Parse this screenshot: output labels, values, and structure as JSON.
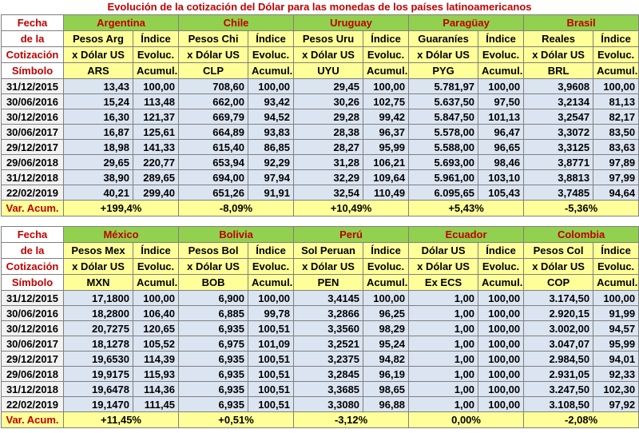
{
  "title": "Evolución de la cotización del Dólar para las monedas de los países latinoamericanos",
  "labels": {
    "fecha": "Fecha",
    "de_la": "de la",
    "cotizacion": "Cotización",
    "simbolo": "Símbolo",
    "var_acum": "Var. Acum."
  },
  "dates": [
    "31/12/2015",
    "30/06/2016",
    "30/12/2016",
    "30/06/2017",
    "29/12/2017",
    "29/06/2018",
    "31/12/2018",
    "22/02/2019"
  ],
  "tables": [
    {
      "countries": [
        {
          "name": "Argentina",
          "unit1": "Pesos Arg",
          "unit2": "x Dólar US",
          "symbol": "ARS",
          "idx1": "Índice",
          "idx2": "Evoluc.",
          "idx3": "Acumul.",
          "values": [
            "13,43",
            "15,24",
            "16,30",
            "16,87",
            "18,98",
            "29,65",
            "38,90",
            "40,21"
          ],
          "index": [
            "100,00",
            "113,48",
            "121,37",
            "125,61",
            "141,33",
            "220,77",
            "289,65",
            "299,40"
          ],
          "var": "+199,4%"
        },
        {
          "name": "Chile",
          "unit1": "Pesos Chi",
          "unit2": "x Dólar US",
          "symbol": "CLP",
          "idx1": "Índice",
          "idx2": "Evoluc.",
          "idx3": "Acumul.",
          "values": [
            "708,60",
            "662,00",
            "669,79",
            "664,89",
            "615,40",
            "653,94",
            "694,00",
            "651,26"
          ],
          "index": [
            "100,00",
            "93,42",
            "94,52",
            "93,83",
            "86,85",
            "92,29",
            "97,94",
            "91,91"
          ],
          "var": "-8,09%"
        },
        {
          "name": "Uruguay",
          "unit1": "Pesos Uru",
          "unit2": "x Dólar US",
          "symbol": "UYU",
          "idx1": "Índice",
          "idx2": "Evoluc.",
          "idx3": "Acumul.",
          "values": [
            "29,45",
            "30,26",
            "29,28",
            "28,38",
            "28,27",
            "31,28",
            "32,29",
            "32,54"
          ],
          "index": [
            "100,00",
            "102,75",
            "99,42",
            "96,37",
            "95,99",
            "106,21",
            "109,64",
            "110,49"
          ],
          "var": "+10,49%"
        },
        {
          "name": "Paragüay",
          "unit1": "Guaraníes",
          "unit2": "x Dólar US",
          "symbol": "PYG",
          "idx1": "Índice",
          "idx2": "Evoluc.",
          "idx3": "Acumul.",
          "values": [
            "5.781,97",
            "5.637,50",
            "5.847,50",
            "5.578,00",
            "5.588,00",
            "5.693,00",
            "5.961,00",
            "6.095,65"
          ],
          "index": [
            "100,00",
            "97,50",
            "101,13",
            "96,47",
            "96,65",
            "98,46",
            "103,10",
            "105,43"
          ],
          "var": "+5,43%"
        },
        {
          "name": "Brasil",
          "unit1": "Reales",
          "unit2": "x Dólar US",
          "symbol": "BRL",
          "idx1": "Índice",
          "idx2": "Evoluc.",
          "idx3": "Acumul.",
          "values": [
            "3,9608",
            "3,2134",
            "3,2547",
            "3,3072",
            "3,3125",
            "3,8771",
            "3,8813",
            "3,7485"
          ],
          "index": [
            "100,00",
            "81,13",
            "82,17",
            "83,50",
            "83,63",
            "97,89",
            "97,99",
            "94,64"
          ],
          "var": "-5,36%"
        }
      ]
    },
    {
      "countries": [
        {
          "name": "México",
          "unit1": "Pesos Mex",
          "unit2": "x Dólar US",
          "symbol": "MXN",
          "idx1": "Índice",
          "idx2": "Evoluc.",
          "idx3": "Acumul.",
          "values": [
            "17,1800",
            "18,2800",
            "20,7275",
            "18,1278",
            "19,6530",
            "19,9175",
            "19,6478",
            "19,1470"
          ],
          "index": [
            "100,00",
            "106,40",
            "120,65",
            "105,52",
            "114,39",
            "115,93",
            "114,36",
            "111,45"
          ],
          "var": "+11,45%"
        },
        {
          "name": "Bolivia",
          "unit1": "Pesos Bol",
          "unit2": "x Dólar US",
          "symbol": "BOB",
          "idx1": "Índice",
          "idx2": "Evoluc.",
          "idx3": "Acumul.",
          "values": [
            "6,900",
            "6,885",
            "6,935",
            "6,975",
            "6,935",
            "6,935",
            "6,935",
            "6,935"
          ],
          "index": [
            "100,00",
            "99,78",
            "100,51",
            "101,09",
            "100,51",
            "100,51",
            "100,51",
            "100,51"
          ],
          "var": "+0,51%"
        },
        {
          "name": "Perú",
          "unit1": "Sol Peruan",
          "unit2": "x Dólar US",
          "symbol": "PEN",
          "idx1": "Índice",
          "idx2": "Evoluc.",
          "idx3": "Acumul.",
          "values": [
            "3,4145",
            "3,2866",
            "3,3560",
            "3,2521",
            "3,2375",
            "3,2845",
            "3,3685",
            "3,3080"
          ],
          "index": [
            "100,00",
            "96,25",
            "98,29",
            "95,24",
            "94,82",
            "96,19",
            "98,65",
            "96,88"
          ],
          "var": "-3,12%"
        },
        {
          "name": "Ecuador",
          "unit1": "Dólar US",
          "unit2": "x Dólar US",
          "symbol": "Ex ECS",
          "idx1": "Índice",
          "idx2": "Evoluc.",
          "idx3": "Acumul.",
          "values": [
            "1,00",
            "1,00",
            "1,00",
            "1,00",
            "1,00",
            "1,00",
            "1,00",
            "1,00"
          ],
          "index": [
            "100,00",
            "100,00",
            "100,00",
            "100,00",
            "100,00",
            "100,00",
            "100,00",
            "100,00"
          ],
          "var": "0,00%"
        },
        {
          "name": "Colombia",
          "unit1": "Pesos Col",
          "unit2": "x Dólar US",
          "symbol": "COP",
          "idx1": "Índice",
          "idx2": "Evoluc.",
          "idx3": "Acumul.",
          "values": [
            "3.174,50",
            "2.920,15",
            "3.002,00",
            "3.047,07",
            "2.984,50",
            "2.931,05",
            "3.247,50",
            "3.108,50"
          ],
          "index": [
            "100,00",
            "91,99",
            "94,57",
            "95,99",
            "94,01",
            "92,33",
            "102,30",
            "97,92"
          ],
          "var": "-2,08%"
        }
      ]
    }
  ]
}
